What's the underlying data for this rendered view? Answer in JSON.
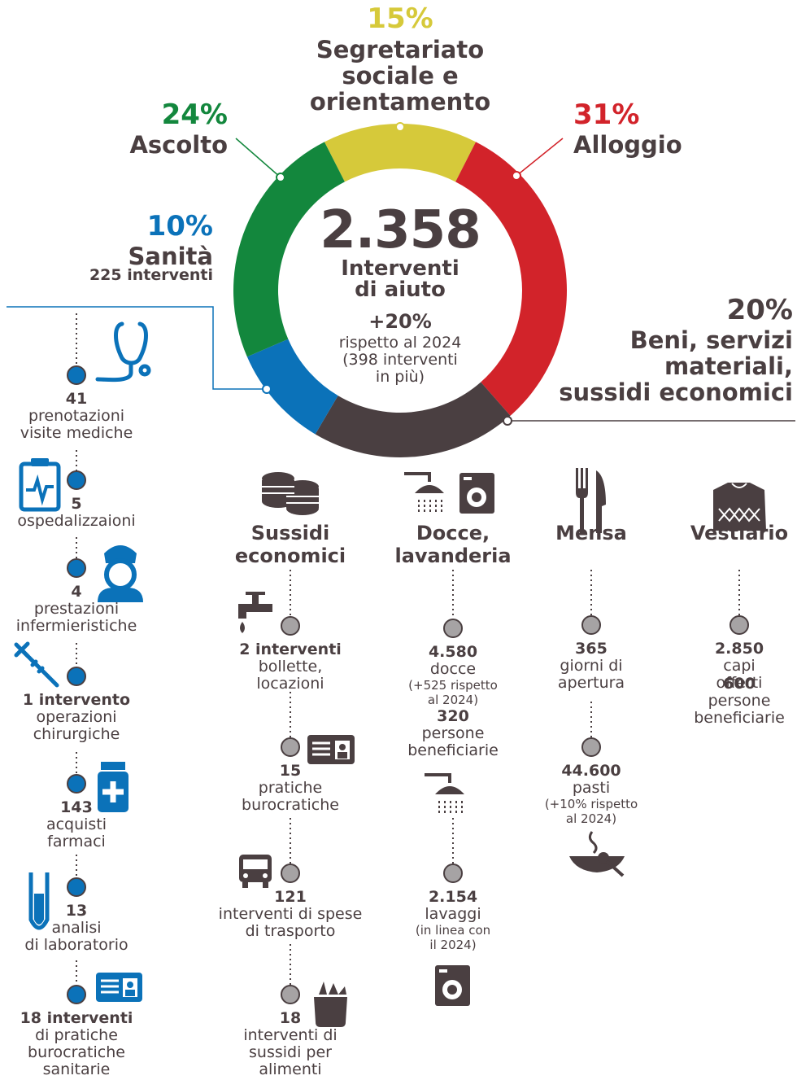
{
  "chart_data": {
    "type": "pie",
    "donut": true,
    "categories": [
      "Segretariato\nsociale e\norientamento",
      "Alloggio",
      "Beni, servizi\nmateriali,\nsussidi economici",
      "Sanità",
      "Ascolto"
    ],
    "values": [
      15,
      31,
      20,
      10,
      24
    ],
    "value_labels": [
      "15%",
      "31%",
      "20%",
      "10%",
      "24%"
    ],
    "colors": [
      "#d6c93a",
      "#d2232a",
      "#4a3f41",
      "#0b72b9",
      "#13873d"
    ],
    "annotations": [
      {
        "category": "Sanità",
        "text": "225 interventi"
      }
    ],
    "center": {
      "total": "2.358",
      "label": "Interventi\ndi aiuto",
      "change": "+20%",
      "change_note": "rispetto al 2024\n(398 interventi\nin più)"
    }
  },
  "health": {
    "items": [
      {
        "number": "41",
        "text": "prenotazioni\nvisite mediche"
      },
      {
        "number": "5",
        "text": "ospedalizzaioni"
      },
      {
        "number": "4",
        "text": "prestazioni\ninfermieristiche"
      },
      {
        "number": "1 intervento",
        "text": "operazioni\nchirurgiche"
      },
      {
        "number": "143",
        "text": "acquisti\nfarmaci"
      },
      {
        "number": "13",
        "text": "analisi\ndi laboratorio"
      },
      {
        "number": "18 interventi",
        "text": "di pratiche\nburocratiche\nsanitarie"
      }
    ]
  },
  "sections": [
    {
      "title": "Sussidi\neconomici",
      "items": [
        {
          "lines": [
            {
              "text": "2 interventi",
              "kind": "num"
            },
            {
              "text": "bollette,\nlocazioni",
              "kind": "txt"
            }
          ]
        },
        {
          "lines": [
            {
              "text": "15",
              "kind": "num"
            },
            {
              "text": "pratiche\nburocratiche",
              "kind": "txt"
            }
          ]
        },
        {
          "lines": [
            {
              "text": "121",
              "kind": "num"
            },
            {
              "text": "interventi di spese\ndi trasporto",
              "kind": "txt"
            }
          ]
        },
        {
          "lines": [
            {
              "text": "18",
              "kind": "num"
            },
            {
              "text": "interventi di\nsussidi per\nalimenti",
              "kind": "txt"
            }
          ]
        }
      ]
    },
    {
      "title": "Docce,\nlavanderia",
      "items": [
        {
          "lines": [
            {
              "text": "4.580",
              "kind": "num"
            },
            {
              "text": "docce",
              "kind": "txt"
            },
            {
              "text": "(+525 rispetto\nal 2024)",
              "kind": "note"
            },
            {
              "text": "320",
              "kind": "num"
            },
            {
              "text": "persone\nbeneficiarie",
              "kind": "txt"
            }
          ]
        },
        {
          "lines": [
            {
              "text": "2.154",
              "kind": "num"
            },
            {
              "text": "lavaggi",
              "kind": "txt"
            },
            {
              "text": "(in linea con\nil 2024)",
              "kind": "note"
            }
          ]
        }
      ]
    },
    {
      "title": "Mensa",
      "items": [
        {
          "lines": [
            {
              "text": "365",
              "kind": "num"
            },
            {
              "text": "giorni di\napertura",
              "kind": "txt"
            }
          ]
        },
        {
          "lines": [
            {
              "text": "44.600",
              "kind": "num"
            },
            {
              "text": "pasti",
              "kind": "txt"
            },
            {
              "text": "(+10% rispetto\nal 2024)",
              "kind": "note"
            }
          ]
        }
      ]
    },
    {
      "title": "Vestiario",
      "items": [
        {
          "lines": [
            {
              "text": "2.850",
              "kind": "num"
            },
            {
              "text": "capi offerti",
              "kind": "txt"
            },
            {
              "text": "600",
              "kind": "num"
            },
            {
              "text": "persone\nbeneficiarie",
              "kind": "txt"
            }
          ]
        }
      ]
    }
  ]
}
